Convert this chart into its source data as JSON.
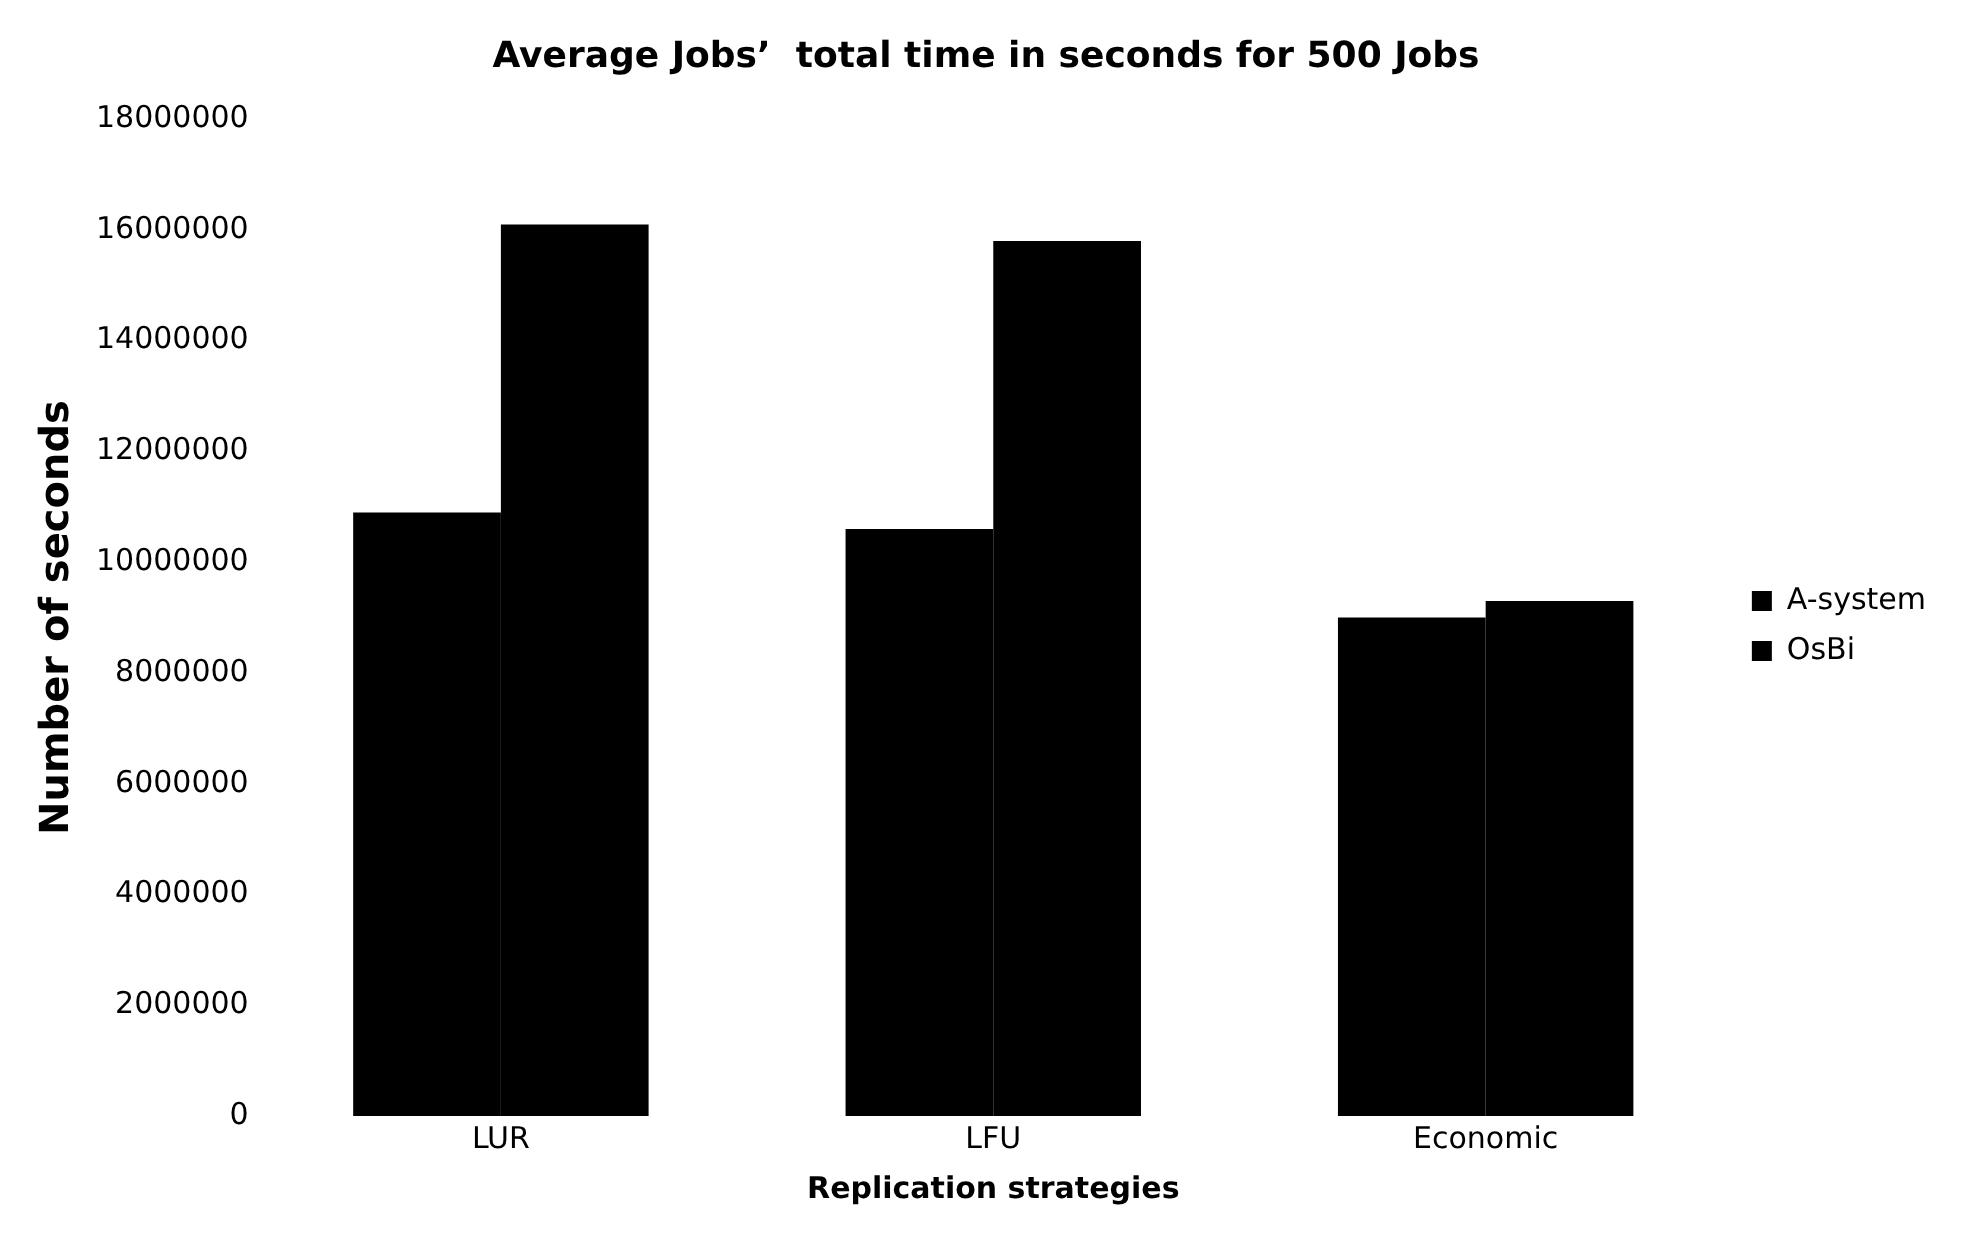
{
  "chart_data": {
    "type": "bar",
    "title": "Average Jobs’  total time in seconds for 500 Jobs",
    "xlabel": "Replication strategies",
    "ylabel": "Number of seconds",
    "categories": [
      "LUR",
      "LFU",
      "Economic"
    ],
    "series": [
      {
        "name": "A-system",
        "color": "#000000",
        "values": [
          10900000,
          10600000,
          9000000
        ]
      },
      {
        "name": "OsBi",
        "color": "#000000",
        "values": [
          16100000,
          15800000,
          9300000
        ]
      }
    ],
    "ylim": [
      0,
      18000000
    ],
    "yticks": [
      0,
      2000000,
      4000000,
      6000000,
      8000000,
      10000000,
      12000000,
      14000000,
      16000000,
      18000000
    ],
    "legend": "right"
  }
}
